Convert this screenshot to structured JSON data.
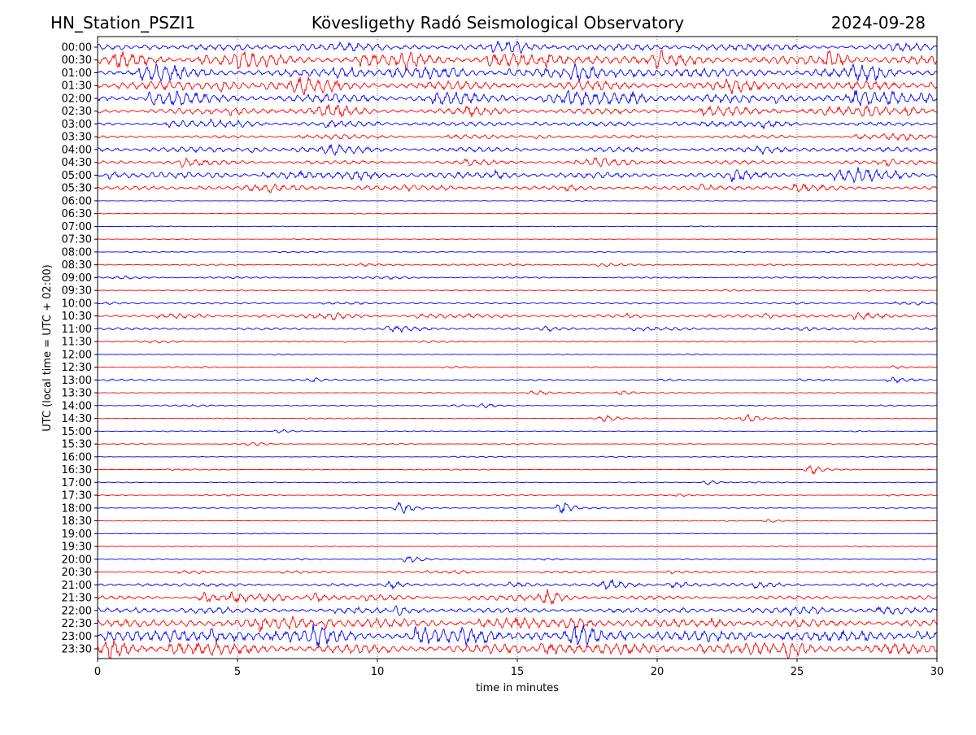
{
  "header": {
    "station": "HN_Station_PSZI1",
    "observatory": "Kövesligethy Radó Seismological Observatory",
    "date": "2024-09-28"
  },
  "chart_data": {
    "type": "line",
    "xlabel": "time in minutes",
    "ylabel": "UTC (local time = UTC + 02:00)",
    "xlim": [
      0,
      30
    ],
    "xticks": [
      "0",
      "5",
      "10",
      "15",
      "20",
      "25",
      "30"
    ],
    "grid": "vertical dotted lines at 5-minute ticks",
    "colors": {
      "even_rows": "#0000ff",
      "odd_rows": "#ff0000"
    },
    "rows": [
      {
        "label": "00:00",
        "noise": 6
      },
      {
        "label": "00:30",
        "noise": 9
      },
      {
        "label": "01:00",
        "noise": 8
      },
      {
        "label": "01:30",
        "noise": 9
      },
      {
        "label": "02:00",
        "noise": 9
      },
      {
        "label": "02:30",
        "noise": 6
      },
      {
        "label": "03:00",
        "noise": 4
      },
      {
        "label": "03:30",
        "noise": 3
      },
      {
        "label": "04:00",
        "noise": 5
      },
      {
        "label": "04:30",
        "noise": 4
      },
      {
        "label": "05:00",
        "noise": 6
      },
      {
        "label": "05:30",
        "noise": 4
      },
      {
        "label": "06:00",
        "noise": 0.6
      },
      {
        "label": "06:30",
        "noise": 0.5
      },
      {
        "label": "07:00",
        "noise": 0.5
      },
      {
        "label": "07:30",
        "noise": 0.5
      },
      {
        "label": "08:00",
        "noise": 0.6
      },
      {
        "label": "08:30",
        "noise": 1.5
      },
      {
        "label": "09:00",
        "noise": 1.5
      },
      {
        "label": "09:30",
        "noise": 1
      },
      {
        "label": "10:00",
        "noise": 1.5
      },
      {
        "label": "10:30",
        "noise": 3
      },
      {
        "label": "11:00",
        "noise": 2.5
      },
      {
        "label": "11:30",
        "noise": 1.2
      },
      {
        "label": "12:00",
        "noise": 0.6
      },
      {
        "label": "12:30",
        "noise": 0.8
      },
      {
        "label": "13:00",
        "noise": 1
      },
      {
        "label": "13:30",
        "noise": 0.6
      },
      {
        "label": "14:00",
        "noise": 1
      },
      {
        "label": "14:30",
        "noise": 0.8
      },
      {
        "label": "15:00",
        "noise": 0.6
      },
      {
        "label": "15:30",
        "noise": 0.5
      },
      {
        "label": "16:00",
        "noise": 0.6
      },
      {
        "label": "16:30",
        "noise": 0.6
      },
      {
        "label": "17:00",
        "noise": 0.6
      },
      {
        "label": "17:30",
        "noise": 0.8
      },
      {
        "label": "18:00",
        "noise": 0.6
      },
      {
        "label": "18:30",
        "noise": 0.6
      },
      {
        "label": "19:00",
        "noise": 0.5
      },
      {
        "label": "19:30",
        "noise": 0.6
      },
      {
        "label": "20:00",
        "noise": 0.8
      },
      {
        "label": "20:30",
        "noise": 1.5
      },
      {
        "label": "21:00",
        "noise": 3
      },
      {
        "label": "21:30",
        "noise": 4
      },
      {
        "label": "22:00",
        "noise": 5
      },
      {
        "label": "22:30",
        "noise": 8
      },
      {
        "label": "23:00",
        "noise": 10
      },
      {
        "label": "23:30",
        "noise": 10
      }
    ],
    "events": [
      {
        "row": "13:00",
        "minute": 7.7,
        "amp": 3
      },
      {
        "row": "13:00",
        "minute": 28.4,
        "amp": 4
      },
      {
        "row": "13:30",
        "minute": 15.6,
        "amp": 4
      },
      {
        "row": "13:30",
        "minute": 18.7,
        "amp": 3
      },
      {
        "row": "14:00",
        "minute": 13.8,
        "amp": 2.5
      },
      {
        "row": "14:30",
        "minute": 18.1,
        "amp": 4
      },
      {
        "row": "14:30",
        "minute": 23.2,
        "amp": 5
      },
      {
        "row": "15:00",
        "minute": 6.5,
        "amp": 2
      },
      {
        "row": "15:30",
        "minute": 5.5,
        "amp": 3
      },
      {
        "row": "12:30",
        "minute": 28.5,
        "amp": 2
      },
      {
        "row": "16:30",
        "minute": 25.5,
        "amp": 6
      },
      {
        "row": "17:00",
        "minute": 21.8,
        "amp": 3
      },
      {
        "row": "17:30",
        "minute": 20.8,
        "amp": 2
      },
      {
        "row": "18:00",
        "minute": 10.8,
        "amp": 8
      },
      {
        "row": "18:00",
        "minute": 16.6,
        "amp": 9
      },
      {
        "row": "18:30",
        "minute": 24.0,
        "amp": 2
      },
      {
        "row": "20:00",
        "minute": 11.1,
        "amp": 5
      },
      {
        "row": "20:30",
        "minute": 20.5,
        "amp": 2
      },
      {
        "row": "21:00",
        "minute": 10.5,
        "amp": 5
      },
      {
        "row": "21:00",
        "minute": 18.2,
        "amp": 7
      },
      {
        "row": "21:00",
        "minute": 20.7,
        "amp": 4
      },
      {
        "row": "21:30",
        "minute": 3.8,
        "amp": 6
      },
      {
        "row": "21:30",
        "minute": 7.7,
        "amp": 7
      },
      {
        "row": "21:30",
        "minute": 16.0,
        "amp": 8
      }
    ]
  }
}
